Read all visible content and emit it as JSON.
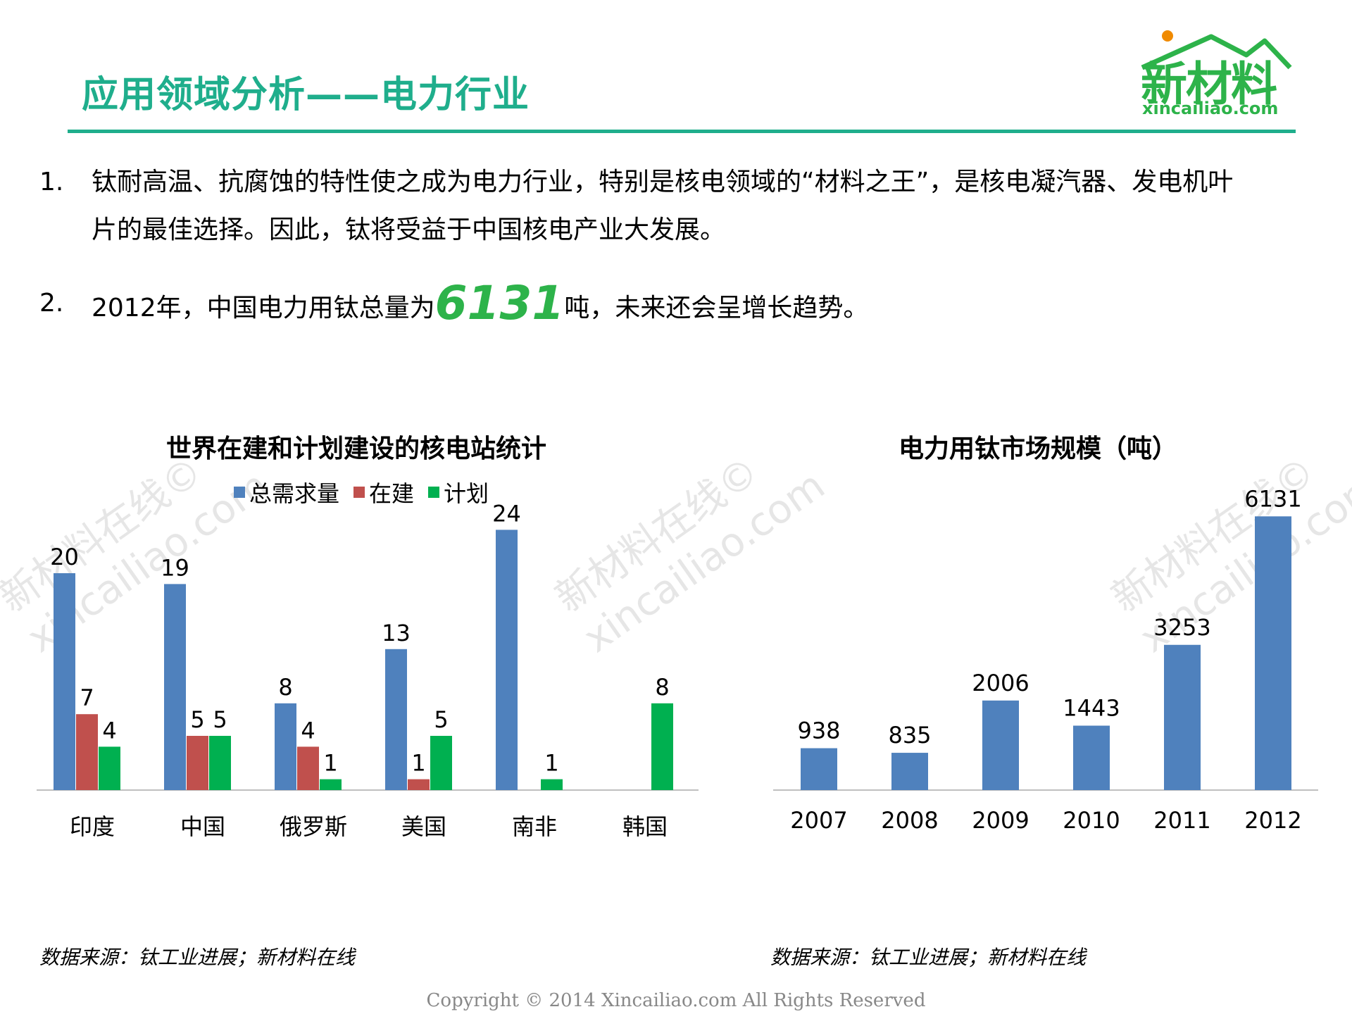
{
  "header": {
    "title": "应用领域分析——电力行业",
    "logo_cn": "新材料",
    "logo_en": "xincailiao.com"
  },
  "bullets": [
    {
      "num": "1.",
      "line1": "钛耐高温、抗腐蚀的特性使之成为电力行业，特别是核电领域的“材料之王”，是核电凝汽器、发电机叶",
      "line2": "片的最佳选择。因此，钛将受益于中国核电产业大发展。"
    },
    {
      "num": "2.",
      "before": "2012年，中国电力用钛总量为",
      "highlight": "6131",
      "after": "吨，未来还会呈增长趋势。"
    }
  ],
  "watermark": {
    "line1": "新材料在线©",
    "line2": "xincailiao.com"
  },
  "colors": {
    "accent": "#1fae8c",
    "highlight": "#2db34a",
    "blue": "#4f81bd",
    "red": "#c0504d",
    "green": "#00b050"
  },
  "chart_data": [
    {
      "type": "bar",
      "title": "世界在建和计划建设的核电站统计",
      "categories": [
        "印度",
        "中国",
        "俄罗斯",
        "美国",
        "南非",
        "韩国"
      ],
      "series": [
        {
          "name": "总需求量",
          "values": [
            20,
            19,
            8,
            13,
            24,
            null
          ],
          "color": "#4f81bd"
        },
        {
          "name": "在建",
          "values": [
            7,
            5,
            4,
            1,
            null,
            null
          ],
          "color": "#c0504d"
        },
        {
          "name": "计划",
          "values": [
            4,
            5,
            1,
            5,
            1,
            8
          ],
          "color": "#00b050"
        }
      ],
      "legend": "top"
    },
    {
      "type": "bar",
      "title": "电力用钛市场规模（吨）",
      "categories": [
        "2007",
        "2008",
        "2009",
        "2010",
        "2011",
        "2012"
      ],
      "values": [
        938,
        835,
        2006,
        1443,
        3253,
        6131
      ],
      "color": "#4f81bd"
    }
  ],
  "sources": {
    "left": "数据来源：钛工业进展；新材料在线",
    "right": "数据来源：钛工业进展；新材料在线"
  },
  "copyright": "Copyright © 2014   Xincailiao.com   All Rights Reserved"
}
